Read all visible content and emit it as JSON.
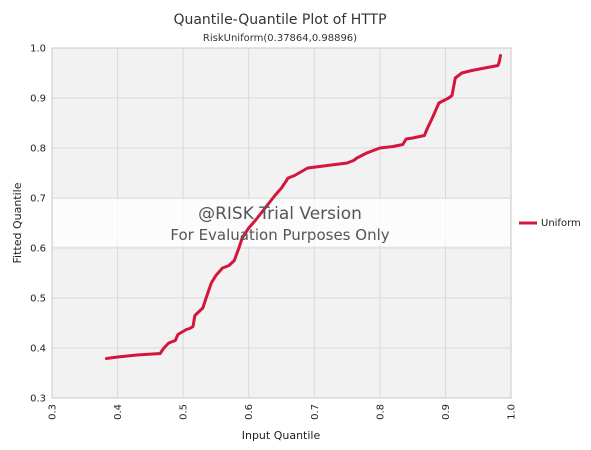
{
  "chart_data": {
    "type": "line",
    "title": "Quantile-Quantile Plot of HTTP",
    "subtitle": "RiskUniform(0.37864,0.98896)",
    "xlabel": "Input Quantile",
    "ylabel": "Fitted Quantile",
    "xlim": [
      0.3,
      1.0
    ],
    "ylim": [
      0.3,
      1.0
    ],
    "xticks": [
      "0.3",
      "0.4",
      "0.5",
      "0.6",
      "0.7",
      "0.8",
      "0.9",
      "1.0"
    ],
    "yticks": [
      "0.3",
      "0.4",
      "0.5",
      "0.6",
      "0.7",
      "0.8",
      "0.9",
      "1.0"
    ],
    "grid": true,
    "legend_position": "right",
    "series": [
      {
        "name": "Uniform",
        "color": "#d4163c",
        "x": [
          0.383,
          0.4,
          0.43,
          0.465,
          0.47,
          0.478,
          0.488,
          0.492,
          0.505,
          0.51,
          0.515,
          0.518,
          0.53,
          0.535,
          0.543,
          0.55,
          0.56,
          0.57,
          0.578,
          0.585,
          0.59,
          0.6,
          0.61,
          0.625,
          0.64,
          0.65,
          0.66,
          0.67,
          0.69,
          0.72,
          0.75,
          0.76,
          0.765,
          0.78,
          0.79,
          0.8,
          0.82,
          0.835,
          0.84,
          0.85,
          0.868,
          0.872,
          0.88,
          0.89,
          0.905,
          0.91,
          0.915,
          0.925,
          0.94,
          0.96,
          0.98,
          0.982,
          0.984
        ],
        "y": [
          0.379,
          0.382,
          0.386,
          0.389,
          0.399,
          0.41,
          0.415,
          0.427,
          0.437,
          0.439,
          0.443,
          0.465,
          0.48,
          0.5,
          0.53,
          0.545,
          0.56,
          0.565,
          0.575,
          0.6,
          0.62,
          0.64,
          0.655,
          0.68,
          0.705,
          0.72,
          0.74,
          0.745,
          0.76,
          0.765,
          0.77,
          0.775,
          0.78,
          0.79,
          0.795,
          0.8,
          0.803,
          0.807,
          0.818,
          0.82,
          0.825,
          0.838,
          0.86,
          0.89,
          0.9,
          0.905,
          0.94,
          0.95,
          0.955,
          0.96,
          0.965,
          0.972,
          0.985
        ]
      }
    ],
    "watermark": {
      "title": "@RISK Trial Version",
      "subtitle": "For Evaluation Purposes Only"
    }
  }
}
